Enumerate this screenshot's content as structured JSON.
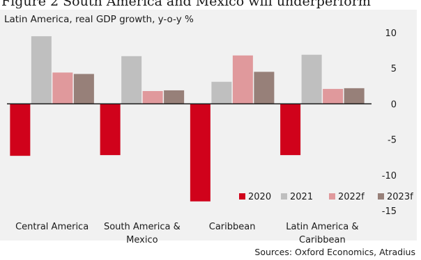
{
  "figure": {
    "title": "Figure 2 South America and Mexico will underperform",
    "source": "Sources: Oxford Economics, Atradius"
  },
  "chart_data": {
    "type": "bar",
    "title": "Latin America, real GDP growth, y-o-y %",
    "categories": [
      [
        "Central America"
      ],
      [
        "South America &",
        "Mexico"
      ],
      [
        "Caribbean"
      ],
      [
        "Latin America &",
        "Caribbean"
      ]
    ],
    "series": [
      {
        "name": "2020",
        "color": "#d0021b",
        "values": [
          -7.3,
          -7.2,
          -13.7,
          -7.2
        ]
      },
      {
        "name": "2021",
        "color": "#bfbfbf",
        "values": [
          9.5,
          6.7,
          3.1,
          6.9
        ]
      },
      {
        "name": "2022f",
        "color": "#e0999c",
        "values": [
          4.4,
          1.8,
          6.8,
          2.1
        ]
      },
      {
        "name": "2023f",
        "color": "#978079",
        "values": [
          4.2,
          1.9,
          4.5,
          2.2
        ]
      }
    ],
    "ylim": [
      -15,
      10
    ],
    "yticks": [
      10,
      5,
      0,
      -5,
      -10,
      -15
    ],
    "yaxis_side": "right",
    "legend_placement": "bottom-right",
    "grid": false
  }
}
